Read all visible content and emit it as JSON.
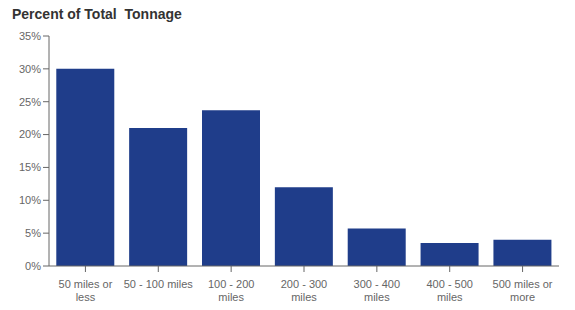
{
  "chart_data": {
    "type": "bar",
    "title": "Percent of Total  Tonnage",
    "categories": [
      "50 miles or\nless",
      "50 - 100 miles",
      "100 - 200\nmiles",
      "200 - 300\nmiles",
      "300 - 400\nmiles",
      "400 - 500\nmiles",
      "500 miles or\nmore"
    ],
    "values": [
      0.3,
      0.21,
      0.237,
      0.12,
      0.057,
      0.035,
      0.04
    ],
    "color": "#1f3d8a",
    "ylim": [
      0,
      0.35
    ],
    "yticks": [
      {
        "value": 0,
        "label": "0%"
      },
      {
        "value": 0.05,
        "label": "5%"
      },
      {
        "value": 0.1,
        "label": "10%"
      },
      {
        "value": 0.15,
        "label": "15%"
      },
      {
        "value": 0.2,
        "label": "20%"
      },
      {
        "value": 0.25,
        "label": "25%"
      },
      {
        "value": 0.3,
        "label": "30%"
      },
      {
        "value": 0.35,
        "label": "35%"
      }
    ],
    "grid": false
  }
}
